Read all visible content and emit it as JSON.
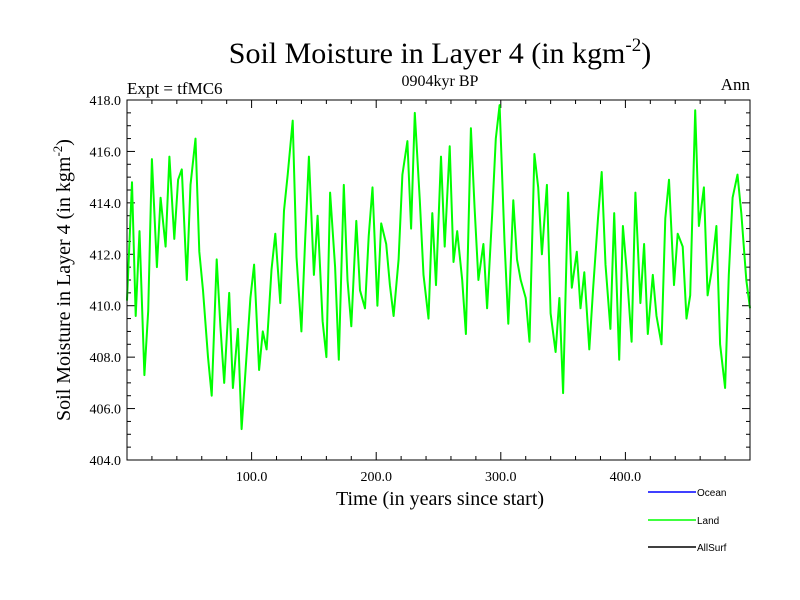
{
  "chart_data": {
    "type": "line",
    "title": "Soil Moisture in Layer 4 (in kgm",
    "title_sup": "-2",
    "title_close": ")",
    "subtitle": "0904kyr BP",
    "left_label": "Expt = tfMC6",
    "right_label": "Ann",
    "xlabel": "Time (in years since start)",
    "ylabel": "Soil Moisture in Layer 4 (in kgm",
    "ylabel_sup": "-2",
    "ylabel_close": ")",
    "xlim": [
      0,
      500
    ],
    "ylim": [
      404.0,
      418.0
    ],
    "x_ticks": [
      100,
      200,
      300,
      400
    ],
    "x_tick_labels": [
      "100.0",
      "200.0",
      "300.0",
      "400.0"
    ],
    "y_ticks": [
      404,
      406,
      408,
      410,
      412,
      414,
      416,
      418
    ],
    "y_tick_labels": [
      "404.0",
      "406.0",
      "408.0",
      "410.0",
      "412.0",
      "414.0",
      "416.0",
      "418.0"
    ],
    "legend": [
      {
        "name": "Ocean",
        "color": "#0000ff"
      },
      {
        "name": "Land",
        "color": "#00ff00"
      },
      {
        "name": "AllSurf",
        "color": "#000000"
      }
    ],
    "series": [
      {
        "name": "Land",
        "color": "#00ff00",
        "x": [
          0,
          4,
          7,
          10,
          14,
          17,
          20,
          24,
          27,
          31,
          34,
          38,
          41,
          44,
          48,
          51,
          55,
          58,
          61,
          65,
          68,
          72,
          75,
          78,
          82,
          85,
          89,
          92,
          95,
          99,
          102,
          106,
          109,
          112,
          116,
          119,
          123,
          126,
          129,
          133,
          136,
          140,
          143,
          146,
          150,
          153,
          157,
          160,
          163,
          167,
          170,
          174,
          177,
          180,
          184,
          187,
          191,
          194,
          197,
          201,
          204,
          208,
          211,
          214,
          218,
          221,
          225,
          228,
          231,
          235,
          238,
          242,
          245,
          248,
          252,
          255,
          259,
          262,
          265,
          269,
          272,
          276,
          279,
          282,
          286,
          289,
          293,
          296,
          299,
          303,
          306,
          310,
          313,
          316,
          320,
          323,
          327,
          330,
          333,
          337,
          340,
          344,
          347,
          350,
          354,
          357,
          361,
          364,
          367,
          371,
          374,
          378,
          381,
          384,
          388,
          391,
          395,
          398,
          401,
          405,
          408,
          412,
          415,
          418,
          422,
          425,
          429,
          432,
          435,
          439,
          442,
          446,
          449,
          452,
          456,
          459,
          463,
          466,
          469,
          473,
          476,
          480,
          483,
          486,
          490,
          493,
          497,
          500
        ],
        "values": [
          410.2,
          414.8,
          409.6,
          412.9,
          407.3,
          409.8,
          415.7,
          411.5,
          414.2,
          412.3,
          415.8,
          412.6,
          414.9,
          415.3,
          411.0,
          414.7,
          416.5,
          412.1,
          410.6,
          408.0,
          406.5,
          411.8,
          409.2,
          407.0,
          410.5,
          406.8,
          409.1,
          405.2,
          407.4,
          410.3,
          411.6,
          407.5,
          409.0,
          408.3,
          411.4,
          412.8,
          410.1,
          413.7,
          415.1,
          417.2,
          411.9,
          409.0,
          412.6,
          415.8,
          411.2,
          413.5,
          409.4,
          408.0,
          414.4,
          411.5,
          407.9,
          414.7,
          411.0,
          409.2,
          413.3,
          410.6,
          409.9,
          412.7,
          414.6,
          410.0,
          413.2,
          412.4,
          410.8,
          409.6,
          411.8,
          415.1,
          416.4,
          413.0,
          417.5,
          414.1,
          411.2,
          409.5,
          413.6,
          410.8,
          415.8,
          412.3,
          416.2,
          411.7,
          412.9,
          411.0,
          408.9,
          416.9,
          413.8,
          411.0,
          412.4,
          409.9,
          413.5,
          416.5,
          417.8,
          412.5,
          409.3,
          414.1,
          411.8,
          411.0,
          410.3,
          408.6,
          415.9,
          414.6,
          412.0,
          414.7,
          409.7,
          408.2,
          410.3,
          406.6,
          414.4,
          410.7,
          412.1,
          409.9,
          411.3,
          408.3,
          410.6,
          413.4,
          415.2,
          411.6,
          409.1,
          413.6,
          407.9,
          413.1,
          411.4,
          408.6,
          414.4,
          410.1,
          412.4,
          408.9,
          411.2,
          409.6,
          408.5,
          413.4,
          414.9,
          410.8,
          412.8,
          412.3,
          409.5,
          410.4,
          417.6,
          413.1,
          414.6,
          410.4,
          411.3,
          413.1,
          408.5,
          406.8,
          411.2,
          414.2,
          415.1,
          413.6,
          411.0,
          409.9
        ]
      }
    ]
  }
}
